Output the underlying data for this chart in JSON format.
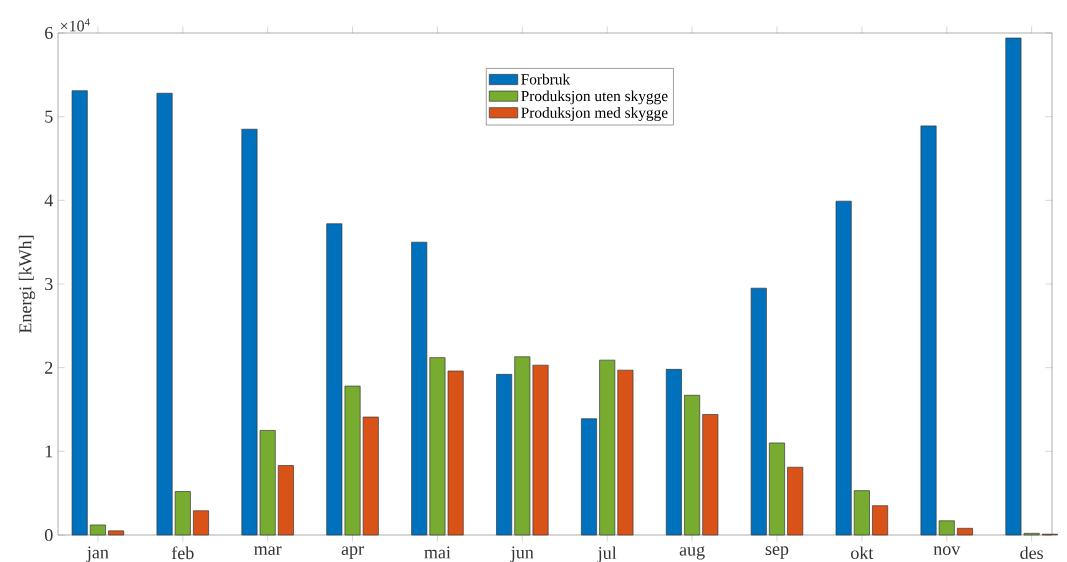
{
  "chart_data": {
    "type": "bar",
    "ylabel": "Energi [kWh]",
    "annotations": [
      "×10$^{4}$"
    ],
    "categories": [
      "jan",
      "feb",
      "mar",
      "apr",
      "mai",
      "jun",
      "jul",
      "aug",
      "sep",
      "okt",
      "nov",
      "des"
    ],
    "series": [
      {
        "name": "Forbruk",
        "color": "#0072bd",
        "values": [
          5.31,
          5.28,
          4.85,
          3.72,
          3.5,
          1.92,
          1.39,
          1.98,
          2.95,
          3.99,
          4.89,
          5.94
        ]
      },
      {
        "name": "Produksjon uten skygge",
        "color": "#77ac30",
        "values": [
          0.12,
          0.52,
          1.25,
          1.78,
          2.12,
          2.13,
          2.09,
          1.67,
          1.1,
          0.53,
          0.17,
          0.02
        ]
      },
      {
        "name": "Produksjon med skygge",
        "color": "#d95319",
        "values": [
          0.05,
          0.29,
          0.83,
          1.41,
          1.96,
          2.03,
          1.97,
          1.44,
          0.81,
          0.35,
          0.08,
          0.01
        ]
      }
    ],
    "ylim": [
      0,
      6
    ],
    "yticks": [
      0,
      1,
      2,
      3,
      4,
      5,
      6
    ],
    "legend": "top"
  }
}
